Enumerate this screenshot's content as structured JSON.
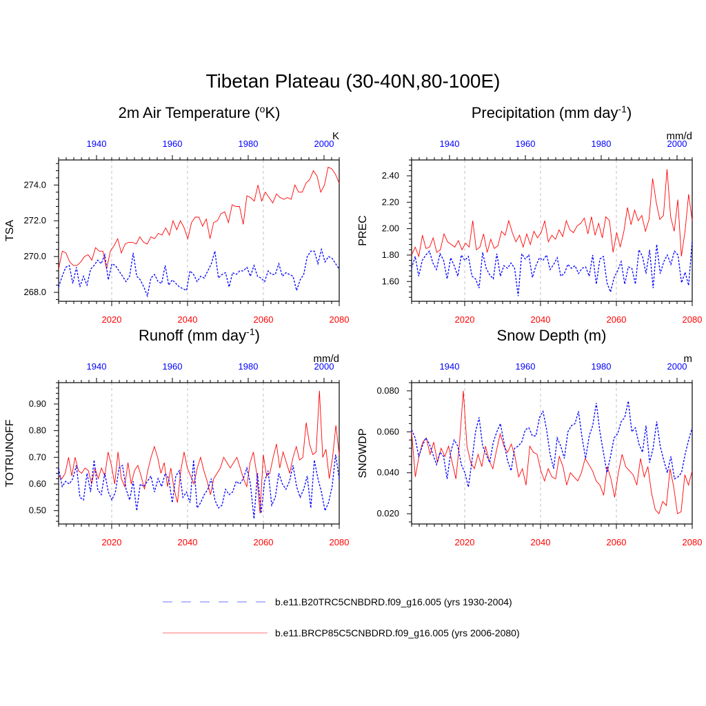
{
  "title": "Tibetan Plateau (30-40N,80-100E)",
  "colors": {
    "future": "#ff0000",
    "historical": "#0000ff",
    "grid": "#bfbfbf"
  },
  "legend": [
    {
      "label": "b.e11.B20TRC5CNBDRD.f09_g16.005 (yrs 1930-2004)",
      "color": "#0000ff",
      "style": "dashed"
    },
    {
      "label": "b.e11.BRCP85C5CNBDRD.f09_g16.005 (yrs 2006-2080)",
      "color": "#ff0000",
      "style": "solid"
    }
  ],
  "chart_data": [
    {
      "type": "line",
      "title_main": "2m Air Temperature (",
      "title_sup": "o",
      "title_end": "K)",
      "ylabel": "TSA",
      "unit": "K",
      "ylim": [
        267.5,
        275.4
      ],
      "yticks": [
        268.0,
        270.0,
        272.0,
        274.0
      ],
      "ytick_labels": [
        "268.0",
        "270.0",
        "272.0",
        "274.0"
      ],
      "xlim_future": [
        2006,
        2080
      ],
      "xticks_future": [
        2020,
        2040,
        2060,
        2080
      ],
      "xticks_hist": [
        1940,
        1960,
        1980,
        2000
      ],
      "series": [
        {
          "name": "b.e11.BRCP85C5CNBDRD.f09_g16.005 (yrs 2006-2080)",
          "values": [
            269.3,
            270.3,
            270.2,
            269.7,
            269.5,
            269.5,
            269.7,
            270.0,
            270.1,
            269.8,
            270.5,
            270.3,
            270.3,
            269.3,
            270.3,
            270.6,
            271.0,
            270.2,
            270.7,
            270.8,
            270.8,
            270.7,
            271.1,
            270.8,
            270.7,
            271.1,
            271.0,
            271.3,
            271.2,
            271.6,
            271.2,
            272.0,
            271.5,
            272.0,
            271.6,
            271.0,
            271.9,
            272.2,
            272.2,
            271.7,
            272.1,
            271.0,
            271.9,
            272.0,
            272.4,
            272.5,
            271.9,
            272.9,
            272.8,
            272.8,
            271.8,
            273.4,
            273.3,
            273.1,
            274.0,
            273.1,
            273.6,
            273.3,
            273.0,
            273.5,
            273.3,
            273.2,
            273.3,
            273.2,
            274.0,
            273.6,
            273.6,
            274.1,
            274.3,
            274.8,
            274.5,
            273.6,
            274.0,
            275.0,
            274.9,
            274.6,
            274.1
          ]
        },
        {
          "name": "b.e11.B20TRC5CNBDRD.f09_g16.005 (yrs 1930-2004)",
          "values": [
            268.3,
            268.9,
            269.4,
            269.5,
            268.5,
            269.4,
            268.3,
            268.9,
            268.4,
            269.3,
            269.5,
            269.8,
            269.6,
            270.1,
            268.7,
            269.6,
            269.5,
            269.2,
            268.9,
            268.6,
            268.9,
            270.2,
            268.9,
            268.7,
            268.3,
            267.8,
            268.8,
            269.0,
            268.6,
            268.5,
            269.5,
            268.4,
            268.7,
            268.5,
            268.3,
            268.2,
            268.1,
            269.2,
            269.0,
            268.6,
            268.9,
            268.8,
            269.2,
            269.6,
            270.3,
            268.8,
            269.0,
            269.1,
            268.3,
            269.1,
            269.0,
            269.2,
            269.2,
            269.4,
            268.9,
            269.5,
            268.9,
            268.8,
            268.6,
            269.2,
            269.0,
            269.0,
            269.6,
            268.9,
            269.1,
            269.0,
            268.9,
            268.1,
            268.7,
            269.0,
            270.0,
            270.3,
            270.3,
            269.6,
            270.4,
            269.7,
            270.0,
            269.9,
            269.6,
            269.3
          ]
        }
      ]
    },
    {
      "type": "line",
      "title_main": "Precipitation (mm day",
      "title_sup": "-1",
      "title_end": ")",
      "ylabel": "PREC",
      "unit": "mm/d",
      "ylim": [
        1.45,
        2.52
      ],
      "yticks": [
        1.6,
        1.8,
        2.0,
        2.2,
        2.4
      ],
      "ytick_labels": [
        "1.60",
        "1.80",
        "2.00",
        "2.20",
        "2.40"
      ],
      "xlim_future": [
        2006,
        2080
      ],
      "xticks_future": [
        2020,
        2040,
        2060,
        2080
      ],
      "xticks_hist": [
        1940,
        1960,
        1980,
        2000
      ],
      "series": [
        {
          "name": "b.e11.BRCP85C5CNBDRD.f09_g16.005 (yrs 2006-2080)",
          "values": [
            1.8,
            1.86,
            1.79,
            1.95,
            1.85,
            1.86,
            1.93,
            1.82,
            1.84,
            1.96,
            1.9,
            1.88,
            1.86,
            1.91,
            1.84,
            1.89,
            1.86,
            2.06,
            1.84,
            1.86,
            1.96,
            1.82,
            1.92,
            1.85,
            1.87,
            1.98,
            1.95,
            2.06,
            1.97,
            1.9,
            1.95,
            1.86,
            1.96,
            1.88,
            1.98,
            1.93,
            1.97,
            2.06,
            1.9,
            1.95,
            1.92,
            1.99,
            1.94,
            2.06,
            1.99,
            1.97,
            2.02,
            2.04,
            2.08,
            1.96,
            2.09,
            1.95,
            2.04,
            1.93,
            2.09,
            2.06,
            1.82,
            1.97,
            1.86,
            1.98,
            2.16,
            2.03,
            2.14,
            2.06,
            2.1,
            1.98,
            2.07,
            2.38,
            2.2,
            2.07,
            2.1,
            2.45,
            2.09,
            1.98,
            2.22,
            1.79,
            1.98,
            2.26,
            2.06
          ]
        },
        {
          "name": "b.e11.B20TRC5CNBDRD.f09_g16.005 (yrs 1930-2004)",
          "values": [
            1.7,
            1.79,
            1.64,
            1.76,
            1.8,
            1.83,
            1.74,
            1.69,
            1.81,
            1.76,
            1.62,
            1.78,
            1.72,
            1.64,
            1.8,
            1.76,
            1.79,
            1.64,
            1.62,
            1.55,
            1.82,
            1.7,
            1.65,
            1.62,
            1.81,
            1.64,
            1.72,
            1.7,
            1.74,
            1.7,
            1.49,
            1.81,
            1.77,
            1.8,
            1.63,
            1.72,
            1.78,
            1.76,
            1.8,
            1.69,
            1.73,
            1.78,
            1.64,
            1.66,
            1.73,
            1.7,
            1.72,
            1.66,
            1.7,
            1.71,
            1.64,
            1.8,
            1.58,
            1.77,
            1.79,
            1.59,
            1.52,
            1.63,
            1.68,
            1.75,
            1.58,
            1.71,
            1.7,
            1.58,
            1.84,
            1.79,
            1.66,
            1.84,
            1.55,
            1.88,
            1.66,
            1.75,
            1.8,
            1.73,
            1.83,
            1.8,
            1.59,
            1.67,
            1.57,
            1.91
          ]
        }
      ]
    },
    {
      "type": "line",
      "title_main": "Runoff (mm day",
      "title_sup": "-1",
      "title_end": ")",
      "ylabel": "TOTRUNOFF",
      "unit": "mm/d",
      "ylim": [
        0.45,
        0.98
      ],
      "yticks": [
        0.5,
        0.6,
        0.7,
        0.8,
        0.9
      ],
      "ytick_labels": [
        "0.50",
        "0.60",
        "0.70",
        "0.80",
        "0.90"
      ],
      "xlim_future": [
        2006,
        2080
      ],
      "xticks_future": [
        2020,
        2040,
        2060,
        2080
      ],
      "xticks_hist": [
        1940,
        1960,
        1980,
        2000
      ],
      "series": [
        {
          "name": "b.e11.BRCP85C5CNBDRD.f09_g16.005 (yrs 2006-2080)",
          "values": [
            0.63,
            0.62,
            0.64,
            0.7,
            0.63,
            0.7,
            0.65,
            0.64,
            0.66,
            0.65,
            0.6,
            0.66,
            0.62,
            0.66,
            0.63,
            0.72,
            0.67,
            0.6,
            0.72,
            0.62,
            0.59,
            0.68,
            0.6,
            0.65,
            0.67,
            0.63,
            0.58,
            0.65,
            0.7,
            0.74,
            0.7,
            0.64,
            0.68,
            0.59,
            0.66,
            0.58,
            0.53,
            0.65,
            0.72,
            0.66,
            0.63,
            0.6,
            0.66,
            0.7,
            0.65,
            0.61,
            0.56,
            0.62,
            0.64,
            0.66,
            0.7,
            0.68,
            0.66,
            0.68,
            0.7,
            0.66,
            0.62,
            0.59,
            0.68,
            0.72,
            0.64,
            0.49,
            0.71,
            0.63,
            0.64,
            0.7,
            0.75,
            0.66,
            0.72,
            0.68,
            0.64,
            0.7,
            0.74,
            0.69,
            0.7,
            0.83,
            0.75,
            0.71,
            0.72,
            0.95,
            0.7,
            0.73,
            0.62,
            0.7,
            0.82,
            0.71
          ]
        },
        {
          "name": "b.e11.B20TRC5CNBDRD.f09_g16.005 (yrs 1930-2004)",
          "values": [
            0.66,
            0.59,
            0.61,
            0.6,
            0.62,
            0.67,
            0.55,
            0.54,
            0.64,
            0.57,
            0.69,
            0.58,
            0.56,
            0.64,
            0.57,
            0.54,
            0.57,
            0.66,
            0.67,
            0.58,
            0.54,
            0.61,
            0.5,
            0.6,
            0.59,
            0.61,
            0.63,
            0.57,
            0.62,
            0.59,
            0.64,
            0.62,
            0.53,
            0.63,
            0.65,
            0.55,
            0.57,
            0.53,
            0.69,
            0.51,
            0.53,
            0.56,
            0.58,
            0.62,
            0.54,
            0.51,
            0.52,
            0.58,
            0.56,
            0.57,
            0.61,
            0.6,
            0.62,
            0.66,
            0.6,
            0.47,
            0.64,
            0.49,
            0.61,
            0.65,
            0.52,
            0.55,
            0.64,
            0.6,
            0.58,
            0.61,
            0.67,
            0.59,
            0.55,
            0.58,
            0.63,
            0.51,
            0.69,
            0.62,
            0.57,
            0.5,
            0.53,
            0.59,
            0.71,
            0.62
          ]
        }
      ]
    },
    {
      "type": "line",
      "title_main": "Snow Depth (m)",
      "title_sup": "",
      "title_end": "",
      "ylabel": "SNOWDP",
      "unit": "m",
      "ylim": [
        0.015,
        0.084
      ],
      "yticks": [
        0.02,
        0.04,
        0.06,
        0.08
      ],
      "ytick_labels": [
        "0.020",
        "0.040",
        "0.060",
        "0.080"
      ],
      "xlim_future": [
        2006,
        2080
      ],
      "xticks_future": [
        2020,
        2040,
        2060,
        2080
      ],
      "xticks_hist": [
        1940,
        1960,
        1980,
        2000
      ],
      "series": [
        {
          "name": "b.e11.BRCP85C5CNBDRD.f09_g16.005 (yrs 2006-2080)",
          "values": [
            0.06,
            0.038,
            0.048,
            0.055,
            0.057,
            0.049,
            0.055,
            0.045,
            0.052,
            0.048,
            0.053,
            0.045,
            0.037,
            0.055,
            0.08,
            0.053,
            0.045,
            0.042,
            0.049,
            0.043,
            0.053,
            0.046,
            0.042,
            0.051,
            0.059,
            0.053,
            0.05,
            0.054,
            0.048,
            0.038,
            0.042,
            0.034,
            0.053,
            0.05,
            0.049,
            0.041,
            0.036,
            0.042,
            0.038,
            0.037,
            0.048,
            0.043,
            0.034,
            0.04,
            0.038,
            0.036,
            0.04,
            0.047,
            0.044,
            0.041,
            0.036,
            0.034,
            0.029,
            0.043,
            0.037,
            0.028,
            0.04,
            0.049,
            0.043,
            0.041,
            0.039,
            0.034,
            0.047,
            0.038,
            0.043,
            0.03,
            0.022,
            0.02,
            0.026,
            0.024,
            0.042,
            0.033,
            0.02,
            0.021,
            0.039,
            0.034,
            0.041
          ]
        },
        {
          "name": "b.e11.B20TRC5CNBDRD.f09_g16.005 (yrs 1930-2004)",
          "values": [
            0.061,
            0.057,
            0.048,
            0.053,
            0.057,
            0.054,
            0.049,
            0.044,
            0.05,
            0.048,
            0.037,
            0.05,
            0.056,
            0.053,
            0.044,
            0.04,
            0.033,
            0.046,
            0.06,
            0.067,
            0.053,
            0.049,
            0.045,
            0.055,
            0.06,
            0.064,
            0.055,
            0.046,
            0.041,
            0.052,
            0.053,
            0.055,
            0.061,
            0.062,
            0.058,
            0.058,
            0.067,
            0.07,
            0.061,
            0.049,
            0.042,
            0.057,
            0.053,
            0.047,
            0.06,
            0.063,
            0.064,
            0.07,
            0.057,
            0.047,
            0.058,
            0.063,
            0.074,
            0.06,
            0.05,
            0.04,
            0.048,
            0.057,
            0.059,
            0.065,
            0.067,
            0.075,
            0.06,
            0.062,
            0.054,
            0.05,
            0.063,
            0.045,
            0.052,
            0.065,
            0.053,
            0.046,
            0.04,
            0.048,
            0.037,
            0.038,
            0.04,
            0.049,
            0.056,
            0.062
          ]
        }
      ]
    }
  ]
}
